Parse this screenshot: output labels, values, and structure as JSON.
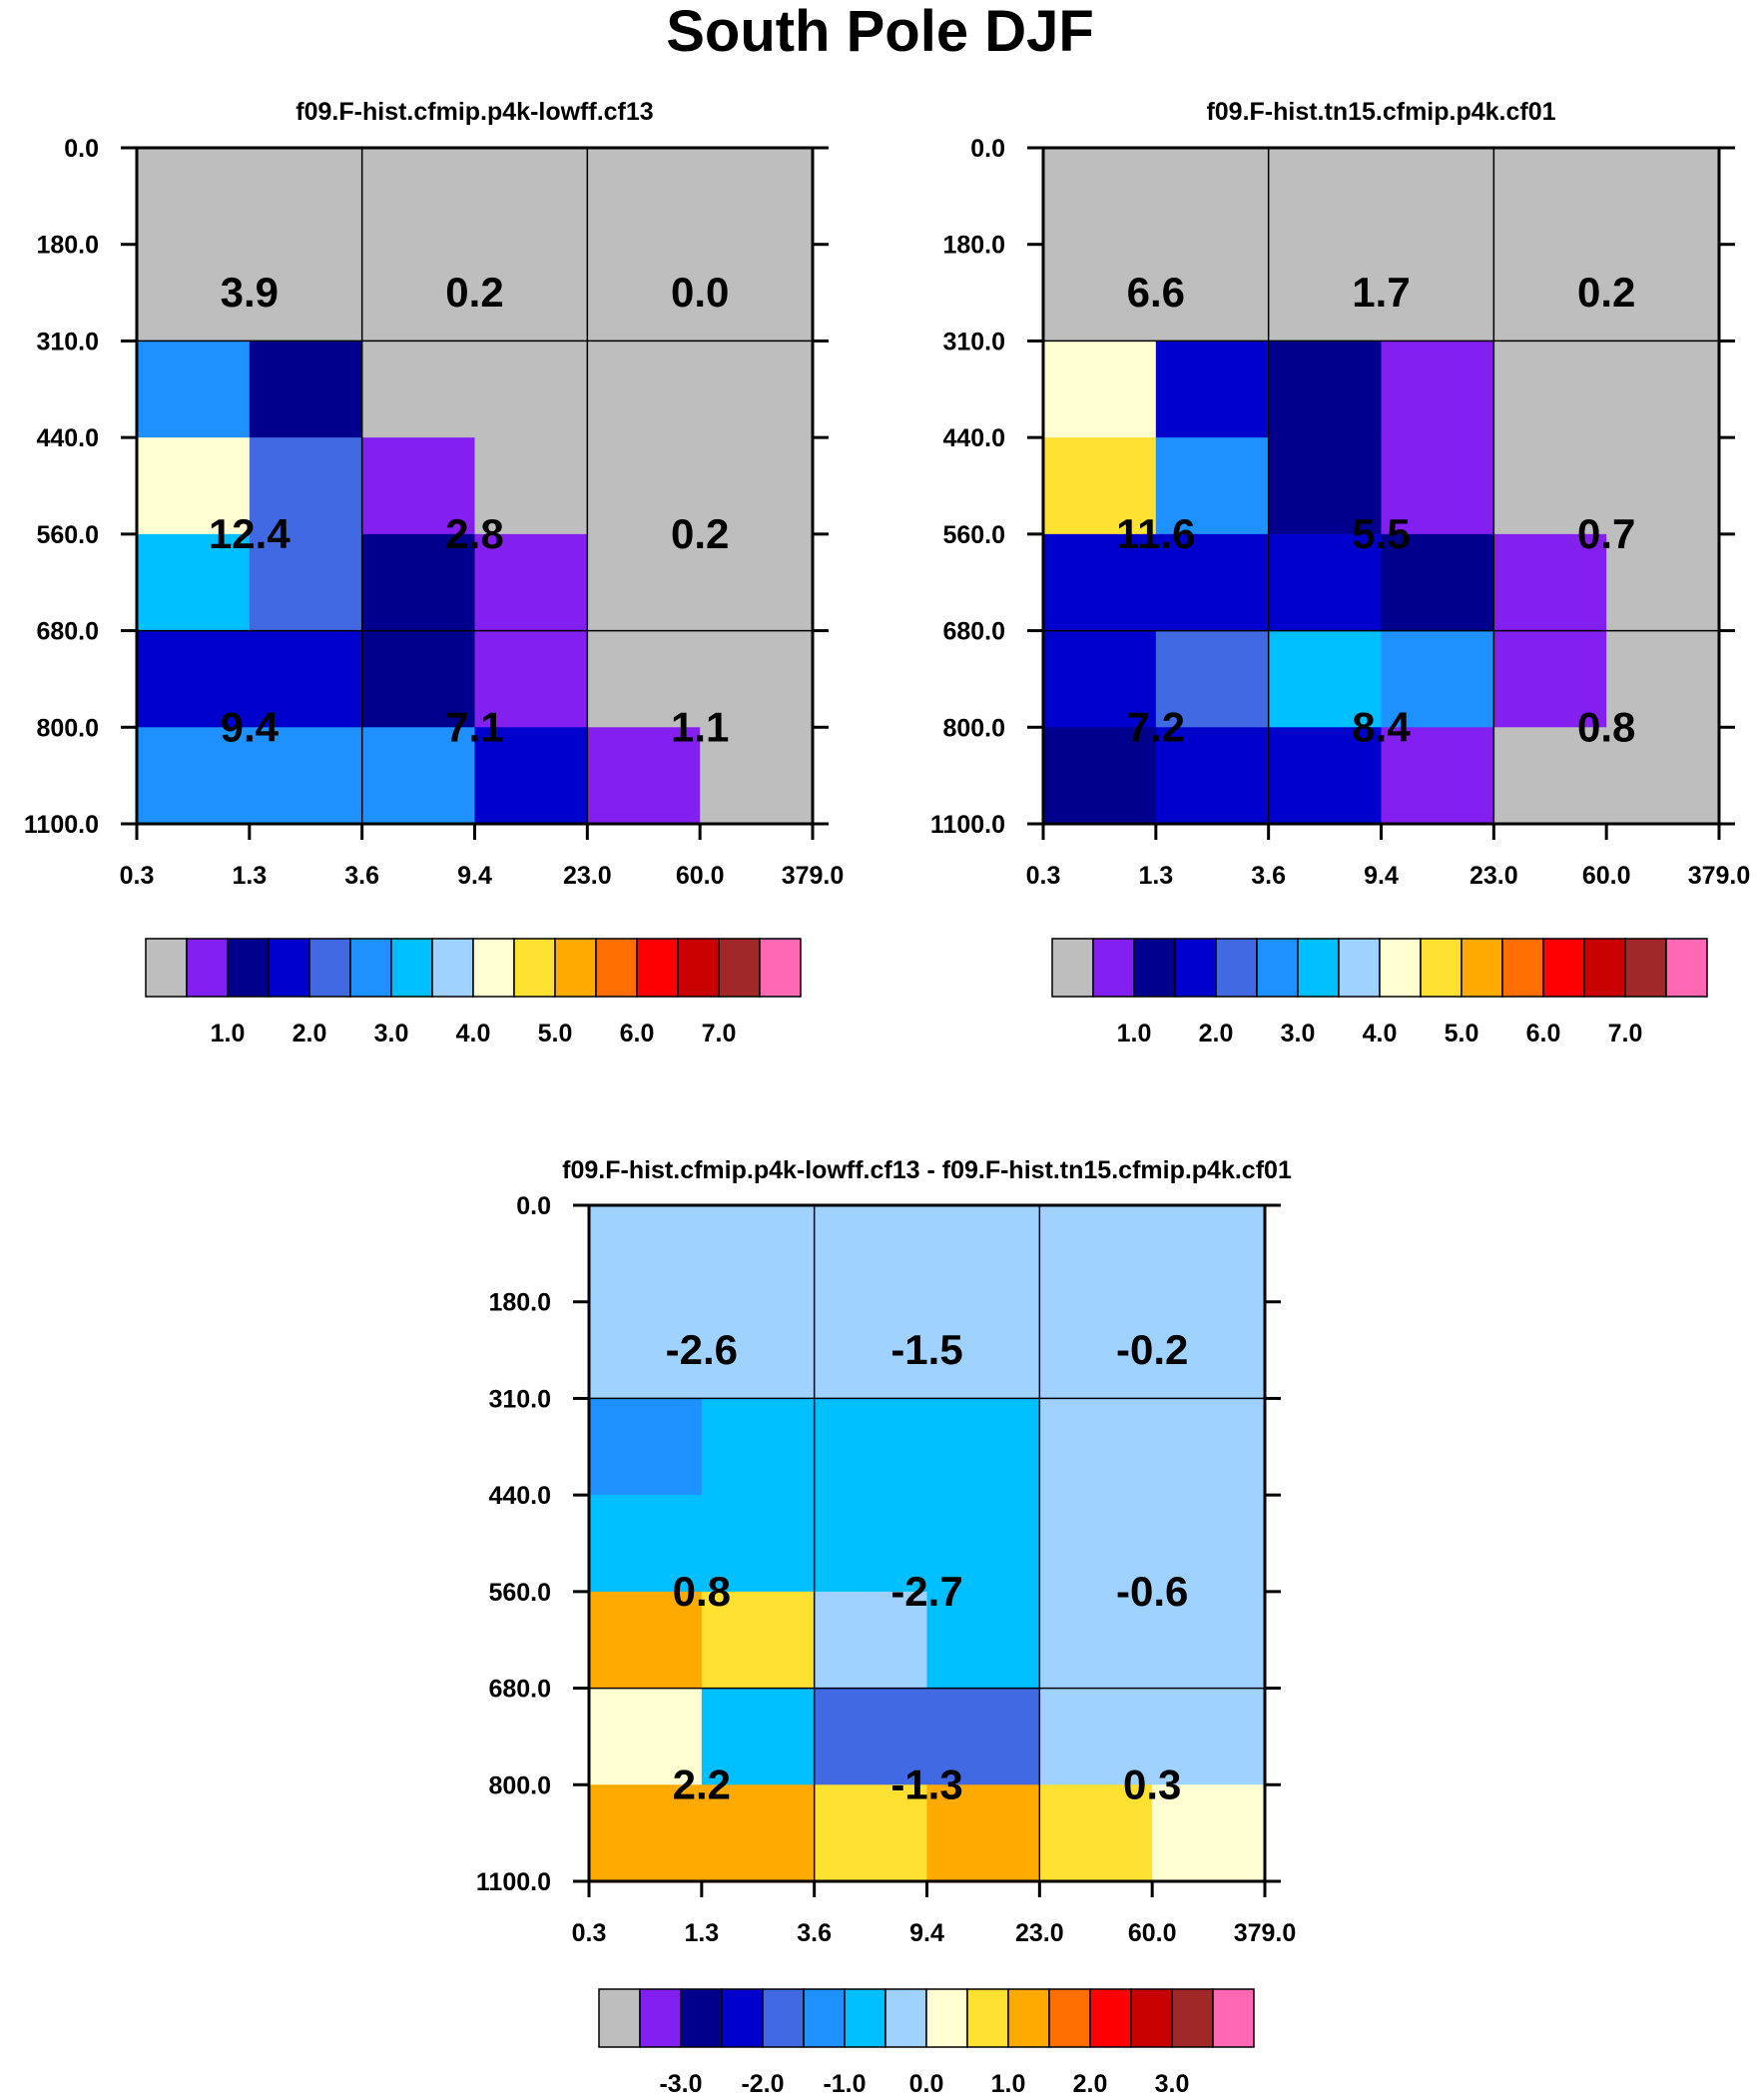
{
  "title": "South Pole DJF",
  "palette": [
    "#bebebe",
    "#8320f0",
    "#00008c",
    "#0000cd",
    "#4169e1",
    "#1e90ff",
    "#00bfff",
    "#a0d2ff",
    "#ffffd2",
    "#ffe132",
    "#ffaa00",
    "#ff6e00",
    "#ff0000",
    "#c80000",
    "#a02828",
    "#ff69b4"
  ],
  "chart_data": [
    {
      "type": "heatmap",
      "title": "f09.F-hist.cfmip.p4k-lowff.cf13",
      "x_ticks": [
        "0.3",
        "1.3",
        "3.6",
        "9.4",
        "23.0",
        "60.0",
        "379.0"
      ],
      "y_ticks": [
        "0.0",
        "180.0",
        "310.0",
        "440.0",
        "560.0",
        "680.0",
        "800.0",
        "1100.0"
      ],
      "cells": [
        [
          0,
          0,
          0,
          0,
          0,
          0
        ],
        [
          5,
          2,
          0,
          0,
          0,
          0
        ],
        [
          8,
          4,
          1,
          0,
          0,
          0
        ],
        [
          6,
          4,
          2,
          1,
          0,
          0
        ],
        [
          3,
          3,
          2,
          1,
          0,
          0
        ],
        [
          5,
          5,
          5,
          3,
          1,
          0
        ]
      ],
      "annotations": [
        {
          "x": 1.3,
          "y": 220,
          "text": "3.9"
        },
        {
          "x": 9.4,
          "y": 220,
          "text": "0.2"
        },
        {
          "x": 60.0,
          "y": 220,
          "text": "0.0"
        },
        {
          "x": 1.3,
          "y": 560,
          "text": "12.4"
        },
        {
          "x": 9.4,
          "y": 560,
          "text": "2.8"
        },
        {
          "x": 60.0,
          "y": 560,
          "text": "0.2"
        },
        {
          "x": 1.3,
          "y": 800,
          "text": "9.4"
        },
        {
          "x": 9.4,
          "y": 800,
          "text": "7.1"
        },
        {
          "x": 60.0,
          "y": 800,
          "text": "1.1"
        }
      ],
      "colorbar_labels": [
        "1.0",
        "2.0",
        "3.0",
        "4.0",
        "5.0",
        "6.0",
        "7.0"
      ]
    },
    {
      "type": "heatmap",
      "title": "f09.F-hist.tn15.cfmip.p4k.cf01",
      "x_ticks": [
        "0.3",
        "1.3",
        "3.6",
        "9.4",
        "23.0",
        "60.0",
        "379.0"
      ],
      "y_ticks": [
        "0.0",
        "180.0",
        "310.0",
        "440.0",
        "560.0",
        "680.0",
        "800.0",
        "1100.0"
      ],
      "cells": [
        [
          0,
          0,
          0,
          0,
          0,
          0
        ],
        [
          8,
          3,
          2,
          1,
          0,
          0
        ],
        [
          9,
          5,
          2,
          1,
          0,
          0
        ],
        [
          3,
          3,
          3,
          2,
          1,
          0
        ],
        [
          3,
          4,
          6,
          5,
          1,
          0
        ],
        [
          2,
          3,
          3,
          1,
          0,
          0
        ]
      ],
      "annotations": [
        {
          "x": 1.3,
          "y": 220,
          "text": "6.6"
        },
        {
          "x": 9.4,
          "y": 220,
          "text": "1.7"
        },
        {
          "x": 60.0,
          "y": 220,
          "text": "0.2"
        },
        {
          "x": 1.3,
          "y": 560,
          "text": "11.6"
        },
        {
          "x": 9.4,
          "y": 560,
          "text": "5.5"
        },
        {
          "x": 60.0,
          "y": 560,
          "text": "0.7"
        },
        {
          "x": 1.3,
          "y": 800,
          "text": "7.2"
        },
        {
          "x": 9.4,
          "y": 800,
          "text": "8.4"
        },
        {
          "x": 60.0,
          "y": 800,
          "text": "0.8"
        }
      ],
      "colorbar_labels": [
        "1.0",
        "2.0",
        "3.0",
        "4.0",
        "5.0",
        "6.0",
        "7.0"
      ]
    },
    {
      "type": "heatmap",
      "title": "f09.F-hist.cfmip.p4k-lowff.cf13 - f09.F-hist.tn15.cfmip.p4k.cf01",
      "x_ticks": [
        "0.3",
        "1.3",
        "3.6",
        "9.4",
        "23.0",
        "60.0",
        "379.0"
      ],
      "y_ticks": [
        "0.0",
        "180.0",
        "310.0",
        "440.0",
        "560.0",
        "680.0",
        "800.0",
        "1100.0"
      ],
      "cells": [
        [
          7,
          7,
          7,
          7,
          7,
          7
        ],
        [
          5,
          6,
          6,
          6,
          7,
          7
        ],
        [
          6,
          6,
          6,
          6,
          7,
          7
        ],
        [
          10,
          9,
          7,
          6,
          7,
          7
        ],
        [
          8,
          6,
          4,
          4,
          7,
          7
        ],
        [
          10,
          10,
          9,
          10,
          9,
          8
        ]
      ],
      "annotations": [
        {
          "x": 1.3,
          "y": 220,
          "text": "-2.6"
        },
        {
          "x": 9.4,
          "y": 220,
          "text": "-1.5"
        },
        {
          "x": 60.0,
          "y": 220,
          "text": "-0.2"
        },
        {
          "x": 1.3,
          "y": 560,
          "text": "0.8"
        },
        {
          "x": 9.4,
          "y": 560,
          "text": "-2.7"
        },
        {
          "x": 60.0,
          "y": 560,
          "text": "-0.6"
        },
        {
          "x": 1.3,
          "y": 800,
          "text": "2.2"
        },
        {
          "x": 9.4,
          "y": 800,
          "text": "-1.3"
        },
        {
          "x": 60.0,
          "y": 800,
          "text": "0.3"
        }
      ],
      "colorbar_labels": [
        "-3.0",
        "-2.0",
        "-1.0",
        "0.0",
        "1.0",
        "2.0",
        "3.0"
      ]
    }
  ]
}
